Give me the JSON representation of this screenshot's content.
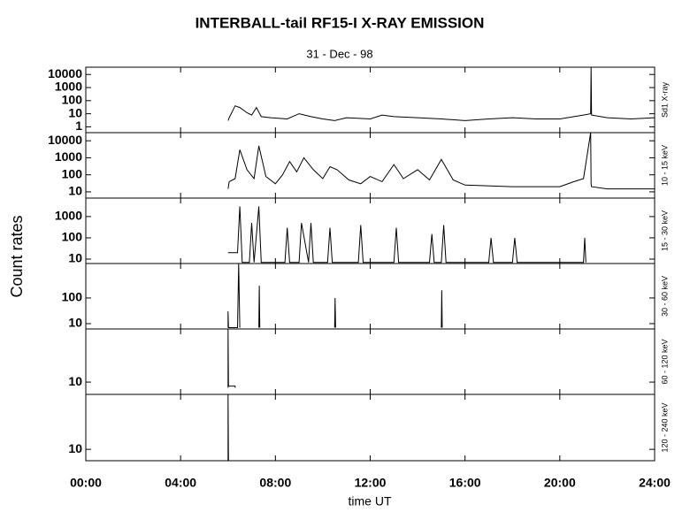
{
  "title": "INTERBALL-tail  RF15-I   X-RAY  EMISSION",
  "subtitle": "31 - Dec - 98",
  "ylabel": "Count  rates",
  "xaxis": {
    "label": "time UT",
    "xlim": [
      0,
      24
    ],
    "xticks": [
      {
        "value": 0,
        "label": "00:00"
      },
      {
        "value": 4,
        "label": "04:00"
      },
      {
        "value": 8,
        "label": "08:00"
      },
      {
        "value": 12,
        "label": "12:00"
      },
      {
        "value": 16,
        "label": "16:00"
      },
      {
        "value": 20,
        "label": "20:00"
      },
      {
        "value": 24,
        "label": "24:00"
      }
    ]
  },
  "chart_data": [
    {
      "type": "line",
      "label": "Sd1  X-ray",
      "log": true,
      "color": "#000000",
      "ylim": [
        0.36,
        36000
      ],
      "yticks": [
        1,
        10,
        100,
        1000,
        10000
      ],
      "x": [
        6.0,
        6.05,
        6.3,
        6.5,
        6.8,
        7.0,
        7.2,
        7.4,
        7.8,
        8.5,
        9.0,
        9.5,
        10.0,
        10.5,
        11.0,
        12.0,
        12.5,
        13.0,
        14.0,
        15.0,
        16.0,
        17.0,
        18.0,
        19.0,
        20.0,
        21.0,
        21.3,
        21.32,
        21.34,
        22.0,
        23.0,
        24.0
      ],
      "values": [
        3,
        5,
        40,
        30,
        12,
        8,
        30,
        6,
        5,
        4,
        10,
        6,
        4,
        3,
        5,
        4,
        8,
        6,
        5,
        4,
        3,
        4,
        5,
        4,
        4,
        8,
        10,
        36000,
        8,
        5,
        4,
        5
      ]
    },
    {
      "type": "line",
      "label": "10 - 15 keV",
      "log": true,
      "color": "#000000",
      "ylim": [
        4.3,
        30000
      ],
      "yticks": [
        10,
        100,
        1000,
        10000
      ],
      "x": [
        6.0,
        6.05,
        6.3,
        6.5,
        6.8,
        7.1,
        7.3,
        7.6,
        8.0,
        8.3,
        8.6,
        8.9,
        9.2,
        9.6,
        10.0,
        10.3,
        10.6,
        11.1,
        11.6,
        12.0,
        12.5,
        13.0,
        13.4,
        14.0,
        14.5,
        15.0,
        15.5,
        16.0,
        18.0,
        20.0,
        20.6,
        21.0,
        21.3,
        21.32,
        21.34,
        22.0,
        23.0,
        24.0
      ],
      "values": [
        15,
        40,
        60,
        3000,
        200,
        60,
        5000,
        80,
        30,
        100,
        600,
        150,
        1000,
        200,
        60,
        300,
        200,
        50,
        30,
        80,
        40,
        400,
        60,
        200,
        50,
        800,
        50,
        25,
        20,
        20,
        40,
        60,
        30000,
        30,
        20,
        15,
        15,
        15
      ]
    },
    {
      "type": "line",
      "label": "15 - 30 keV",
      "log": true,
      "color": "#000000",
      "ylim": [
        6.2,
        7400
      ],
      "yticks": [
        10,
        100,
        1000
      ],
      "x": [
        6.0,
        6.4,
        6.5,
        6.6,
        6.9,
        7.0,
        7.1,
        7.3,
        7.4,
        8.4,
        8.5,
        8.6,
        9.0,
        9.1,
        9.4,
        9.5,
        9.6,
        10.2,
        10.3,
        10.4,
        11.5,
        11.6,
        11.7,
        13.0,
        13.1,
        13.2,
        14.5,
        14.6,
        14.7,
        15.0,
        15.1,
        15.2,
        17.0,
        17.1,
        17.2,
        18.0,
        18.1,
        18.2,
        21.0,
        21.05,
        21.1
      ],
      "values": [
        20,
        20,
        3000,
        7,
        7,
        500,
        7,
        3000,
        7,
        7,
        300,
        7,
        7,
        500,
        7,
        500,
        7,
        7,
        300,
        7,
        7,
        400,
        7,
        7,
        300,
        7,
        7,
        150,
        7,
        7,
        400,
        7,
        7,
        100,
        7,
        7,
        100,
        7,
        7,
        100,
        7
      ]
    },
    {
      "type": "line",
      "label": "30 - 60 keV",
      "log": true,
      "color": "#000000",
      "ylim": [
        6.2,
        2200
      ],
      "yticks": [
        10,
        100
      ],
      "x": [
        6.0,
        6.0,
        6.02,
        6.4,
        6.45,
        6.5,
        null,
        7.3,
        7.32,
        7.34,
        null,
        10.5,
        10.52,
        10.54,
        null,
        15.0,
        15.02,
        15.04
      ],
      "values": [
        7,
        30,
        7,
        7,
        2200,
        7,
        null,
        7,
        300,
        7,
        null,
        7,
        100,
        7,
        null,
        7,
        200,
        7
      ]
    },
    {
      "type": "line",
      "label": "60 - 120 keV",
      "log": true,
      "color": "#000000",
      "ylim": [
        3.3,
        1200
      ],
      "yticks": [
        10
      ],
      "x": [
        6.0,
        6.0,
        6.02,
        6.3,
        6.3
      ],
      "values": [
        6,
        1200,
        7,
        7,
        6
      ]
    },
    {
      "type": "line",
      "label": "120 - 240 keV",
      "log": true,
      "color": "#000000",
      "ylim": [
        3.6,
        1400
      ],
      "yticks": [
        10
      ],
      "x": [
        6.0,
        6.0,
        6.02
      ],
      "values": [
        3.6,
        1400,
        3.6
      ]
    }
  ]
}
